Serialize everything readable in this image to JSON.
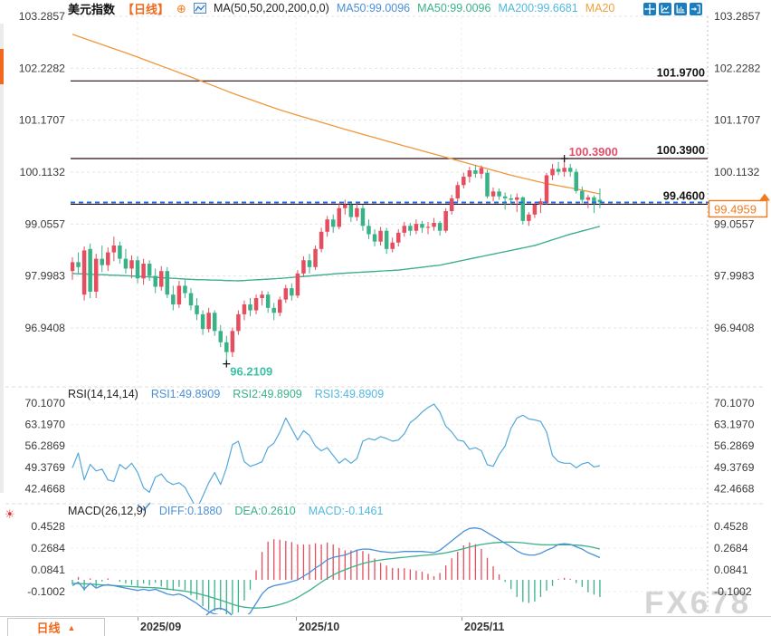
{
  "header": {
    "title": "美元指数",
    "period_tag": "【日线】",
    "ma_settings": "MA(50,50,200,200,0,0)",
    "ma50_blue": "MA50:99.0096",
    "ma50_green": "MA50:99.0096",
    "ma200": "MA200:99.6681",
    "ma20": "MA20"
  },
  "rsi_header": {
    "lead": "RSI(14,14,14)",
    "rsi1": "RSI1:49.8909",
    "rsi2": "RSI2:49.8909",
    "rsi3": "RSI3:49.8909"
  },
  "macd_header": {
    "lead": "MACD(26,12,9)",
    "diff": "DIFF:0.1880",
    "dea": "DEA:0.2610",
    "macd": "MACD:-0.1461"
  },
  "icons": {
    "circle_plus": "⊕",
    "sun": "☀",
    "arrow_up": "▲"
  },
  "axes": {
    "main_price_labels": [
      "103.2857",
      "102.2282",
      "101.1707",
      "100.1132",
      "99.0557",
      "97.9983",
      "96.9408"
    ],
    "rsi_labels": [
      "70.1070",
      "63.1970",
      "56.2869",
      "49.3769",
      "42.4668"
    ],
    "macd_labels": [
      "0.4528",
      "0.2684",
      "0.0841",
      "-0.1002"
    ]
  },
  "levels": [
    {
      "price": 101.97,
      "label": "101.9700"
    },
    {
      "price": 100.39,
      "label": "100.3900"
    },
    {
      "price": 99.46,
      "label": "99.4600"
    }
  ],
  "current_price": {
    "value": 99.4959,
    "label": "99.4959"
  },
  "markers": {
    "high": {
      "label": "100.3900",
      "value": 100.39
    },
    "low": {
      "label": "96.2109",
      "value": 96.2109
    }
  },
  "timeline": {
    "dates": [
      "2025/09",
      "2025/10",
      "2025/11"
    ]
  },
  "bottom_bar": {
    "period": "日线"
  },
  "watermark": "FX678",
  "colors": {
    "up": "#e44e5e",
    "down": "#3ab287",
    "ma_orange": "#f0973c",
    "ma_green": "#3ab287",
    "ma_blue": "#4a90d8",
    "rsi_line": "#55a8d8",
    "diff_line": "#4a90d8",
    "dea_line": "#3ab287",
    "level_line": "#2a0b10",
    "price_dash": "#1a6fe8",
    "accent_orange": "#f07c1e",
    "high_label": "#e24f6b",
    "low_label": "#3cc0a5",
    "axis_text": "#3a3a3a",
    "grid": "#e4e4e4"
  },
  "chart_data": {
    "type": "candlestick+indicators",
    "title": "美元指数 日线 (US Dollar Index, daily)",
    "n_points": 90,
    "main_panel": {
      "ylim": [
        96.41,
        103.2857
      ],
      "y_ticks": [
        103.2857,
        102.2282,
        101.1707,
        100.1132,
        99.0557,
        97.9983,
        96.9408
      ],
      "candles_ohlc": [
        [
          98.1,
          98.38,
          97.92,
          98.28
        ],
        [
          98.28,
          98.48,
          98.05,
          98.18
        ],
        [
          97.62,
          98.6,
          97.5,
          98.52
        ],
        [
          98.55,
          98.66,
          97.55,
          97.68
        ],
        [
          97.68,
          98.45,
          97.55,
          98.35
        ],
        [
          98.35,
          98.62,
          98.08,
          98.22
        ],
        [
          98.22,
          98.58,
          98.1,
          98.48
        ],
        [
          98.48,
          98.8,
          98.3,
          98.62
        ],
        [
          98.62,
          98.7,
          98.25,
          98.35
        ],
        [
          98.35,
          98.55,
          98.05,
          98.15
        ],
        [
          98.15,
          98.42,
          97.95,
          98.32
        ],
        [
          98.32,
          98.4,
          97.85,
          97.95
        ],
        [
          97.95,
          98.35,
          97.82,
          98.25
        ],
        [
          98.25,
          98.32,
          97.9,
          98.0
        ],
        [
          98.0,
          98.15,
          97.65,
          97.78
        ],
        [
          97.78,
          98.2,
          97.7,
          98.1
        ],
        [
          98.1,
          98.18,
          97.55,
          97.62
        ],
        [
          97.62,
          97.8,
          97.3,
          97.42
        ],
        [
          97.42,
          97.9,
          97.35,
          97.8
        ],
        [
          97.8,
          97.92,
          97.55,
          97.65
        ],
        [
          97.65,
          97.75,
          97.3,
          97.4
        ],
        [
          97.4,
          97.55,
          97.1,
          97.22
        ],
        [
          97.22,
          97.3,
          96.8,
          96.92
        ],
        [
          96.92,
          97.35,
          96.85,
          97.25
        ],
        [
          97.25,
          97.3,
          96.78,
          96.88
        ],
        [
          96.88,
          97.0,
          96.55,
          96.65
        ],
        [
          96.65,
          96.78,
          96.2109,
          96.45
        ],
        [
          96.45,
          96.95,
          96.35,
          96.88
        ],
        [
          96.88,
          97.3,
          96.8,
          97.22
        ],
        [
          97.22,
          97.5,
          97.1,
          97.42
        ],
        [
          97.42,
          97.55,
          97.18,
          97.3
        ],
        [
          97.3,
          97.62,
          97.22,
          97.55
        ],
        [
          97.55,
          97.7,
          97.4,
          97.62
        ],
        [
          97.62,
          97.68,
          97.25,
          97.35
        ],
        [
          97.35,
          97.45,
          97.1,
          97.25
        ],
        [
          97.25,
          97.58,
          97.18,
          97.52
        ],
        [
          97.52,
          97.82,
          97.45,
          97.75
        ],
        [
          97.75,
          97.85,
          97.5,
          97.6
        ],
        [
          97.6,
          98.12,
          97.55,
          98.05
        ],
        [
          98.05,
          98.4,
          97.98,
          98.32
        ],
        [
          98.32,
          98.45,
          98.05,
          98.18
        ],
        [
          98.18,
          98.62,
          98.12,
          98.55
        ],
        [
          98.55,
          98.98,
          98.48,
          98.9
        ],
        [
          98.9,
          99.22,
          98.8,
          99.15
        ],
        [
          99.15,
          99.25,
          98.88,
          99.0
        ],
        [
          99.0,
          99.48,
          98.95,
          99.38
        ],
        [
          99.38,
          99.55,
          99.25,
          99.45
        ],
        [
          99.45,
          99.52,
          99.1,
          99.2
        ],
        [
          99.2,
          99.5,
          99.12,
          99.38
        ],
        [
          99.38,
          99.45,
          98.92,
          99.02
        ],
        [
          99.02,
          99.15,
          98.75,
          98.85
        ],
        [
          98.85,
          98.95,
          98.6,
          98.7
        ],
        [
          98.7,
          99.0,
          98.62,
          98.92
        ],
        [
          98.92,
          98.98,
          98.45,
          98.55
        ],
        [
          98.55,
          98.78,
          98.48,
          98.68
        ],
        [
          98.68,
          98.95,
          98.6,
          98.88
        ],
        [
          98.88,
          99.1,
          98.8,
          99.02
        ],
        [
          99.02,
          99.08,
          98.82,
          98.92
        ],
        [
          98.92,
          99.15,
          98.85,
          99.06
        ],
        [
          99.06,
          99.12,
          98.88,
          98.98
        ],
        [
          98.98,
          99.1,
          98.85,
          99.0
        ],
        [
          99.0,
          99.18,
          98.92,
          99.08
        ],
        [
          99.08,
          99.12,
          98.82,
          98.92
        ],
        [
          98.92,
          99.38,
          98.88,
          99.32
        ],
        [
          99.32,
          99.65,
          99.25,
          99.58
        ],
        [
          99.58,
          99.92,
          99.5,
          99.85
        ],
        [
          99.85,
          100.1,
          99.78,
          100.02
        ],
        [
          100.02,
          100.22,
          99.9,
          100.15
        ],
        [
          100.15,
          100.26,
          100.0,
          100.08
        ],
        [
          100.08,
          100.25,
          99.98,
          100.2
        ],
        [
          100.1,
          100.16,
          99.58,
          99.62
        ],
        [
          99.62,
          99.8,
          99.52,
          99.72
        ],
        [
          99.72,
          99.78,
          99.55,
          99.62
        ],
        [
          99.62,
          99.7,
          99.35,
          99.58
        ],
        [
          99.58,
          99.66,
          99.45,
          99.55
        ],
        [
          99.55,
          99.68,
          99.3,
          99.6
        ],
        [
          99.6,
          99.62,
          99.05,
          99.12
        ],
        [
          99.12,
          99.3,
          99.02,
          99.25
        ],
        [
          99.25,
          99.5,
          99.18,
          99.45
        ],
        [
          99.45,
          99.58,
          99.28,
          99.52
        ],
        [
          99.48,
          100.1,
          99.45,
          100.05
        ],
        [
          100.05,
          100.28,
          99.95,
          100.18
        ],
        [
          100.18,
          100.32,
          100.05,
          100.12
        ],
        [
          100.12,
          100.39,
          100.02,
          100.2
        ],
        [
          100.2,
          100.28,
          100.02,
          100.12
        ],
        [
          100.12,
          100.18,
          99.68,
          99.73
        ],
        [
          99.73,
          99.82,
          99.48,
          99.55
        ],
        [
          99.55,
          99.65,
          99.38,
          99.6
        ],
        [
          99.6,
          99.64,
          99.28,
          99.47
        ],
        [
          99.55,
          99.78,
          99.38,
          99.5
        ]
      ],
      "ma200_orange_anchors": [
        [
          0,
          102.92
        ],
        [
          10,
          102.5
        ],
        [
          20,
          102.05
        ],
        [
          27,
          101.72
        ],
        [
          35,
          101.38
        ],
        [
          45,
          101.02
        ],
        [
          55,
          100.68
        ],
        [
          62,
          100.45
        ],
        [
          68,
          100.25
        ],
        [
          74,
          100.05
        ],
        [
          80,
          99.88
        ],
        [
          85,
          99.77
        ],
        [
          89,
          99.67
        ]
      ],
      "ma50_green_anchors": [
        [
          0,
          98.05
        ],
        [
          10,
          98.0
        ],
        [
          20,
          97.93
        ],
        [
          28,
          97.9
        ],
        [
          35,
          97.95
        ],
        [
          45,
          98.05
        ],
        [
          55,
          98.12
        ],
        [
          62,
          98.22
        ],
        [
          70,
          98.42
        ],
        [
          78,
          98.62
        ],
        [
          84,
          98.85
        ],
        [
          89,
          99.01
        ]
      ],
      "ma50_blue_anchors": [
        [
          0,
          98.05
        ],
        [
          10,
          98.0
        ],
        [
          20,
          97.93
        ],
        [
          28,
          97.9
        ],
        [
          35,
          97.95
        ],
        [
          45,
          98.05
        ],
        [
          55,
          98.12
        ],
        [
          62,
          98.22
        ],
        [
          70,
          98.42
        ],
        [
          78,
          98.62
        ],
        [
          84,
          98.85
        ],
        [
          89,
          99.01
        ]
      ],
      "high_marker_index": 83,
      "low_marker_index": 26
    },
    "rsi_panel": {
      "ylim": [
        35,
        72
      ],
      "y_ticks": [
        70.107,
        63.197,
        56.2869,
        49.3769,
        42.4668
      ],
      "rsi": [
        49.2,
        54.0,
        45.3,
        50.3,
        48.2,
        48.8,
        45.3,
        44.8,
        50.3,
        48.8,
        50.7,
        47.7,
        42.8,
        41.3,
        46.2,
        47.2,
        44.8,
        43.8,
        44.4,
        42.9,
        39.3,
        35.8,
        40.0,
        44.4,
        47.7,
        43.8,
        49.2,
        56.7,
        57.8,
        51.2,
        49.7,
        50.3,
        51.2,
        55.7,
        57.2,
        60.8,
        65.3,
        61.8,
        58.2,
        61.2,
        59.7,
        56.2,
        54.7,
        55.7,
        53.2,
        50.7,
        52.2,
        50.7,
        52.2,
        57.8,
        58.7,
        58.2,
        59.3,
        58.7,
        57.8,
        58.2,
        60.2,
        63.8,
        65.3,
        67.2,
        68.7,
        69.8,
        67.2,
        62.7,
        60.8,
        58.2,
        57.8,
        55.2,
        55.7,
        54.7,
        50.2,
        49.7,
        53.5,
        56.2,
        62.0,
        65.3,
        66.2,
        65.0,
        64.7,
        64.2,
        60.8,
        53.2,
        51.2,
        50.7,
        50.7,
        49.2,
        50.5,
        51.0,
        49.5,
        49.89
      ]
    },
    "macd_panel": {
      "y_ticks": [
        0.4528,
        0.2684,
        0.0841,
        -0.1002
      ],
      "hist_formula": "hist = 2*(DIFF-DEA)",
      "diff": [
        -0.05,
        -0.02,
        -0.08,
        -0.03,
        -0.07,
        -0.05,
        -0.04,
        -0.05,
        -0.06,
        -0.07,
        -0.08,
        -0.09,
        -0.08,
        -0.09,
        -0.08,
        -0.1,
        -0.12,
        -0.13,
        -0.12,
        -0.14,
        -0.17,
        -0.2,
        -0.24,
        -0.27,
        -0.29,
        -0.3,
        -0.35,
        -0.38,
        -0.36,
        -0.32,
        -0.28,
        -0.2,
        -0.12,
        -0.07,
        -0.05,
        -0.04,
        -0.03,
        -0.015,
        0.0,
        0.03,
        0.06,
        0.1,
        0.13,
        0.17,
        0.19,
        0.2,
        0.21,
        0.23,
        0.25,
        0.26,
        0.26,
        0.25,
        0.24,
        0.235,
        0.23,
        0.235,
        0.24,
        0.24,
        0.24,
        0.24,
        0.235,
        0.23,
        0.25,
        0.29,
        0.33,
        0.37,
        0.41,
        0.435,
        0.44,
        0.43,
        0.4,
        0.37,
        0.34,
        0.31,
        0.28,
        0.245,
        0.22,
        0.21,
        0.21,
        0.225,
        0.25,
        0.27,
        0.3,
        0.305,
        0.3,
        0.28,
        0.26,
        0.23,
        0.21,
        0.188
      ],
      "dea": [
        -0.03,
        -0.032,
        -0.034,
        -0.036,
        -0.04,
        -0.043,
        -0.046,
        -0.049,
        -0.052,
        -0.055,
        -0.058,
        -0.061,
        -0.064,
        -0.066,
        -0.068,
        -0.072,
        -0.078,
        -0.084,
        -0.09,
        -0.096,
        -0.105,
        -0.115,
        -0.128,
        -0.142,
        -0.158,
        -0.172,
        -0.19,
        -0.208,
        -0.222,
        -0.232,
        -0.238,
        -0.24,
        -0.238,
        -0.232,
        -0.222,
        -0.21,
        -0.195,
        -0.175,
        -0.15,
        -0.12,
        -0.09,
        -0.055,
        -0.02,
        0.012,
        0.04,
        0.065,
        0.085,
        0.105,
        0.122,
        0.138,
        0.15,
        0.16,
        0.168,
        0.175,
        0.18,
        0.186,
        0.191,
        0.196,
        0.201,
        0.206,
        0.21,
        0.215,
        0.221,
        0.229,
        0.239,
        0.251,
        0.264,
        0.277,
        0.289,
        0.299,
        0.307,
        0.313,
        0.317,
        0.319,
        0.32,
        0.318,
        0.314,
        0.308,
        0.302,
        0.298,
        0.296,
        0.296,
        0.297,
        0.297,
        0.296,
        0.294,
        0.29,
        0.283,
        0.273,
        0.261
      ]
    },
    "x_axis": {
      "month_labels": [
        "2025/09",
        "2025/10",
        "2025/11"
      ]
    }
  }
}
